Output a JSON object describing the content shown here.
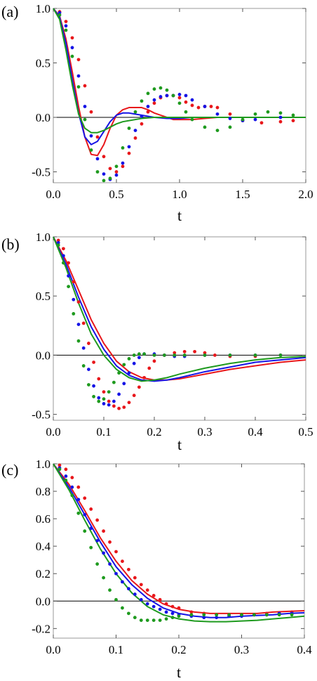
{
  "colors": {
    "red": "#e8171b",
    "blue": "#1614e6",
    "green": "#1e9a1e",
    "axis": "#000000",
    "frame": "#9a9a9a"
  },
  "chart_data": [
    {
      "panel": "(a)",
      "type": "line",
      "xlabel": "t",
      "ylabel": "",
      "xlim": [
        0,
        2.0
      ],
      "ylim": [
        -0.6,
        1.0
      ],
      "xticks": [
        "0.0",
        "0.5",
        "1.0",
        "1.5",
        "2.0"
      ],
      "yticks": [
        "1.0",
        "0.5",
        "0.0",
        "-0.5"
      ],
      "xtick_values": [
        0,
        0.5,
        1.0,
        1.5,
        2.0
      ],
      "ytick_values": [
        1.0,
        0.5,
        0.0,
        -0.5
      ],
      "series": [
        {
          "color": "red",
          "style": "line",
          "x": [
            0,
            0.05,
            0.1,
            0.15,
            0.2,
            0.25,
            0.3,
            0.35,
            0.4,
            0.45,
            0.5,
            0.55,
            0.6,
            0.65,
            0.7,
            0.75,
            0.8,
            0.85,
            0.9,
            0.95,
            1.0,
            1.1,
            1.2,
            1.3,
            1.4,
            1.5,
            1.6,
            1.8,
            2.0
          ],
          "y": [
            1.0,
            0.93,
            0.72,
            0.42,
            0.1,
            -0.18,
            -0.34,
            -0.35,
            -0.25,
            -0.1,
            0.02,
            0.07,
            0.09,
            0.09,
            0.09,
            0.07,
            0.04,
            0.02,
            0.0,
            -0.02,
            -0.02,
            -0.02,
            -0.01,
            0.0,
            0.0,
            0.0,
            0.0,
            0.0,
            0.0
          ]
        },
        {
          "color": "blue",
          "style": "line",
          "x": [
            0,
            0.05,
            0.1,
            0.15,
            0.2,
            0.25,
            0.3,
            0.35,
            0.4,
            0.45,
            0.5,
            0.55,
            0.6,
            0.65,
            0.7,
            0.75,
            0.8,
            0.9,
            1.0,
            1.1,
            1.2,
            1.4,
            1.6,
            1.8,
            2.0
          ],
          "y": [
            1.0,
            0.92,
            0.68,
            0.35,
            0.04,
            -0.18,
            -0.25,
            -0.22,
            -0.13,
            -0.04,
            0.02,
            0.04,
            0.04,
            0.03,
            0.02,
            0.01,
            0.0,
            -0.01,
            -0.01,
            0.0,
            0.0,
            0.0,
            0.0,
            0.0,
            0.0
          ]
        },
        {
          "color": "green",
          "style": "line",
          "x": [
            0,
            0.05,
            0.1,
            0.15,
            0.2,
            0.25,
            0.3,
            0.35,
            0.4,
            0.45,
            0.5,
            0.55,
            0.6,
            0.7,
            0.8,
            0.9,
            1.0,
            1.2,
            1.4,
            1.6,
            1.8,
            2.0
          ],
          "y": [
            1.0,
            0.9,
            0.62,
            0.3,
            0.03,
            -0.1,
            -0.14,
            -0.14,
            -0.12,
            -0.09,
            -0.06,
            -0.04,
            -0.03,
            -0.01,
            0.0,
            0.0,
            0.0,
            0.0,
            0.0,
            0.0,
            0.0,
            0.0
          ]
        },
        {
          "color": "red",
          "style": "dots",
          "x": [
            0.05,
            0.1,
            0.15,
            0.2,
            0.25,
            0.3,
            0.35,
            0.4,
            0.45,
            0.5,
            0.55,
            0.6,
            0.65,
            0.7,
            0.75,
            0.8,
            0.85,
            0.9,
            0.95,
            1.0,
            1.05,
            1.1,
            1.15,
            1.2,
            1.25,
            1.3,
            1.4,
            1.5,
            1.65,
            1.8,
            1.9
          ],
          "y": [
            0.97,
            0.88,
            0.73,
            0.53,
            0.29,
            0.05,
            -0.18,
            -0.36,
            -0.47,
            -0.5,
            -0.45,
            -0.33,
            -0.19,
            -0.06,
            0.05,
            0.13,
            0.18,
            0.2,
            0.2,
            0.18,
            0.14,
            0.11,
            0.09,
            0.1,
            0.1,
            0.09,
            0.03,
            -0.03,
            -0.05,
            -0.04,
            -0.03
          ]
        },
        {
          "color": "blue",
          "style": "dots",
          "x": [
            0.05,
            0.1,
            0.15,
            0.2,
            0.25,
            0.3,
            0.35,
            0.4,
            0.45,
            0.5,
            0.55,
            0.6,
            0.65,
            0.7,
            0.75,
            0.8,
            0.85,
            0.9,
            0.95,
            1.0,
            1.05,
            1.1,
            1.2,
            1.3,
            1.4,
            1.5,
            1.6,
            1.8
          ],
          "y": [
            0.96,
            0.84,
            0.64,
            0.38,
            0.1,
            -0.17,
            -0.38,
            -0.52,
            -0.57,
            -0.53,
            -0.42,
            -0.27,
            -0.12,
            0.01,
            0.1,
            0.16,
            0.19,
            0.2,
            0.2,
            0.21,
            0.2,
            0.16,
            0.1,
            0.03,
            -0.01,
            -0.03,
            -0.02,
            0.0
          ]
        },
        {
          "color": "green",
          "style": "dots",
          "x": [
            0.05,
            0.1,
            0.15,
            0.2,
            0.25,
            0.3,
            0.35,
            0.4,
            0.45,
            0.5,
            0.55,
            0.6,
            0.65,
            0.7,
            0.75,
            0.8,
            0.85,
            0.9,
            0.95,
            1.0,
            1.05,
            1.1,
            1.2,
            1.3,
            1.4,
            1.5,
            1.6,
            1.7,
            1.8,
            1.9
          ],
          "y": [
            0.94,
            0.8,
            0.56,
            0.28,
            -0.02,
            -0.3,
            -0.5,
            -0.58,
            -0.56,
            -0.45,
            -0.28,
            -0.1,
            0.05,
            0.15,
            0.22,
            0.26,
            0.27,
            0.25,
            0.2,
            0.13,
            0.05,
            -0.02,
            -0.09,
            -0.12,
            -0.09,
            -0.02,
            0.03,
            0.05,
            0.04,
            0.02
          ]
        }
      ]
    },
    {
      "panel": "(b)",
      "type": "line",
      "xlabel": "t",
      "ylabel": "",
      "xlim": [
        0,
        0.5
      ],
      "ylim": [
        -0.55,
        1.0
      ],
      "xticks": [
        "0.0",
        "0.1",
        "0.2",
        "0.3",
        "0.4",
        "0.5"
      ],
      "yticks": [
        "1.0",
        "0.5",
        "0.0",
        "-0.5"
      ],
      "xtick_values": [
        0,
        0.1,
        0.2,
        0.3,
        0.4,
        0.5
      ],
      "ytick_values": [
        1.0,
        0.5,
        0.0,
        -0.5
      ],
      "series": [
        {
          "color": "red",
          "style": "line",
          "x": [
            0,
            0.025,
            0.05,
            0.075,
            0.1,
            0.125,
            0.15,
            0.175,
            0.2,
            0.225,
            0.25,
            0.3,
            0.35,
            0.4,
            0.45,
            0.5
          ],
          "y": [
            1.0,
            0.8,
            0.55,
            0.3,
            0.1,
            -0.05,
            -0.14,
            -0.19,
            -0.21,
            -0.21,
            -0.2,
            -0.16,
            -0.12,
            -0.09,
            -0.06,
            -0.04
          ]
        },
        {
          "color": "blue",
          "style": "line",
          "x": [
            0,
            0.025,
            0.05,
            0.075,
            0.1,
            0.125,
            0.15,
            0.175,
            0.2,
            0.225,
            0.25,
            0.3,
            0.35,
            0.4,
            0.45,
            0.5
          ],
          "y": [
            1.0,
            0.77,
            0.49,
            0.24,
            0.05,
            -0.09,
            -0.17,
            -0.21,
            -0.22,
            -0.21,
            -0.19,
            -0.14,
            -0.1,
            -0.06,
            -0.04,
            -0.02
          ]
        },
        {
          "color": "green",
          "style": "line",
          "x": [
            0,
            0.025,
            0.05,
            0.075,
            0.1,
            0.125,
            0.15,
            0.175,
            0.2,
            0.225,
            0.25,
            0.3,
            0.35,
            0.4,
            0.45,
            0.5
          ],
          "y": [
            1.0,
            0.74,
            0.44,
            0.18,
            0.0,
            -0.12,
            -0.19,
            -0.22,
            -0.21,
            -0.19,
            -0.16,
            -0.11,
            -0.07,
            -0.04,
            -0.02,
            -0.01
          ]
        },
        {
          "color": "red",
          "style": "dots",
          "x": [
            0.01,
            0.02,
            0.03,
            0.04,
            0.05,
            0.06,
            0.07,
            0.08,
            0.09,
            0.1,
            0.11,
            0.12,
            0.13,
            0.14,
            0.15,
            0.16,
            0.17,
            0.18,
            0.19,
            0.2,
            0.22,
            0.24,
            0.26,
            0.28,
            0.3,
            0.32,
            0.35,
            0.4,
            0.45
          ],
          "y": [
            0.97,
            0.9,
            0.78,
            0.62,
            0.45,
            0.27,
            0.1,
            -0.06,
            -0.2,
            -0.31,
            -0.39,
            -0.43,
            -0.45,
            -0.44,
            -0.4,
            -0.34,
            -0.27,
            -0.19,
            -0.11,
            -0.05,
            0.0,
            0.02,
            0.03,
            0.03,
            0.02,
            0.0,
            -0.01,
            -0.01,
            0.0
          ]
        },
        {
          "color": "blue",
          "style": "dots",
          "x": [
            0.01,
            0.02,
            0.03,
            0.04,
            0.05,
            0.06,
            0.07,
            0.08,
            0.09,
            0.1,
            0.11,
            0.12,
            0.13,
            0.14,
            0.15,
            0.16,
            0.17,
            0.18,
            0.2,
            0.22,
            0.24,
            0.26,
            0.3,
            0.35,
            0.4,
            0.45
          ],
          "y": [
            0.95,
            0.84,
            0.67,
            0.47,
            0.26,
            0.06,
            -0.12,
            -0.26,
            -0.36,
            -0.41,
            -0.42,
            -0.39,
            -0.33,
            -0.24,
            -0.15,
            -0.07,
            -0.02,
            0.01,
            0.01,
            0.0,
            -0.01,
            -0.01,
            0.0,
            0.0,
            0.0,
            0.0
          ]
        },
        {
          "color": "green",
          "style": "dots",
          "x": [
            0.01,
            0.02,
            0.03,
            0.04,
            0.05,
            0.06,
            0.07,
            0.08,
            0.09,
            0.1,
            0.11,
            0.12,
            0.13,
            0.14,
            0.15,
            0.16,
            0.17,
            0.18,
            0.2,
            0.22,
            0.24,
            0.26,
            0.3,
            0.35,
            0.4,
            0.45
          ],
          "y": [
            0.93,
            0.78,
            0.58,
            0.35,
            0.12,
            -0.09,
            -0.25,
            -0.35,
            -0.39,
            -0.37,
            -0.31,
            -0.23,
            -0.15,
            -0.08,
            -0.03,
            0.0,
            0.01,
            0.01,
            0.0,
            0.0,
            0.0,
            0.0,
            0.0,
            0.0,
            0.0,
            0.0
          ]
        }
      ]
    },
    {
      "panel": "(c)",
      "type": "line",
      "xlabel": "t",
      "ylabel": "",
      "xlim": [
        0,
        0.4
      ],
      "ylim": [
        -0.27,
        1.0
      ],
      "xticks": [
        "0.0",
        "0.1",
        "0.2",
        "0.3",
        "0.4"
      ],
      "yticks": [
        "1.0",
        "0.8",
        "0.6",
        "0.4",
        "0.2",
        "0.0",
        "-0.2"
      ],
      "xtick_values": [
        0,
        0.1,
        0.2,
        0.3,
        0.4
      ],
      "ytick_values": [
        1.0,
        0.8,
        0.6,
        0.4,
        0.2,
        0.0,
        -0.2
      ],
      "series": [
        {
          "color": "red",
          "style": "line",
          "x": [
            0,
            0.025,
            0.05,
            0.075,
            0.1,
            0.125,
            0.15,
            0.175,
            0.2,
            0.225,
            0.25,
            0.275,
            0.3,
            0.325,
            0.35,
            0.375,
            0.4
          ],
          "y": [
            1.0,
            0.85,
            0.66,
            0.46,
            0.29,
            0.15,
            0.05,
            -0.02,
            -0.06,
            -0.08,
            -0.09,
            -0.09,
            -0.09,
            -0.09,
            -0.08,
            -0.075,
            -0.07
          ]
        },
        {
          "color": "blue",
          "style": "line",
          "x": [
            0,
            0.025,
            0.05,
            0.075,
            0.1,
            0.125,
            0.15,
            0.175,
            0.2,
            0.225,
            0.25,
            0.275,
            0.3,
            0.325,
            0.35,
            0.375,
            0.4
          ],
          "y": [
            1.0,
            0.83,
            0.63,
            0.43,
            0.25,
            0.12,
            0.02,
            -0.05,
            -0.09,
            -0.11,
            -0.12,
            -0.12,
            -0.11,
            -0.105,
            -0.1,
            -0.09,
            -0.085
          ]
        },
        {
          "color": "green",
          "style": "line",
          "x": [
            0,
            0.025,
            0.05,
            0.075,
            0.1,
            0.125,
            0.15,
            0.175,
            0.2,
            0.225,
            0.25,
            0.275,
            0.3,
            0.325,
            0.35,
            0.375,
            0.4
          ],
          "y": [
            1.0,
            0.81,
            0.59,
            0.38,
            0.2,
            0.06,
            -0.04,
            -0.1,
            -0.13,
            -0.145,
            -0.15,
            -0.15,
            -0.145,
            -0.14,
            -0.13,
            -0.12,
            -0.11
          ]
        },
        {
          "color": "red",
          "style": "dots",
          "x": [
            0.01,
            0.02,
            0.03,
            0.04,
            0.05,
            0.06,
            0.07,
            0.08,
            0.09,
            0.1,
            0.11,
            0.12,
            0.13,
            0.14,
            0.15,
            0.16,
            0.17,
            0.18,
            0.19,
            0.2,
            0.22,
            0.24,
            0.26,
            0.28,
            0.3,
            0.32,
            0.34,
            0.36,
            0.38
          ],
          "y": [
            0.99,
            0.96,
            0.9,
            0.83,
            0.75,
            0.67,
            0.59,
            0.51,
            0.43,
            0.36,
            0.29,
            0.23,
            0.17,
            0.12,
            0.08,
            0.04,
            0.01,
            -0.02,
            -0.04,
            -0.05,
            -0.08,
            -0.09,
            -0.1,
            -0.1,
            -0.1,
            -0.1,
            -0.09,
            -0.09,
            -0.08
          ]
        },
        {
          "color": "blue",
          "style": "dots",
          "x": [
            0.01,
            0.02,
            0.03,
            0.04,
            0.05,
            0.06,
            0.07,
            0.08,
            0.09,
            0.1,
            0.11,
            0.12,
            0.13,
            0.14,
            0.15,
            0.16,
            0.17,
            0.18,
            0.19,
            0.2,
            0.22,
            0.24,
            0.26,
            0.28,
            0.3,
            0.32,
            0.34,
            0.36,
            0.38
          ],
          "y": [
            0.97,
            0.91,
            0.83,
            0.74,
            0.63,
            0.53,
            0.44,
            0.35,
            0.27,
            0.2,
            0.14,
            0.09,
            0.05,
            0.01,
            -0.02,
            -0.04,
            -0.06,
            -0.08,
            -0.09,
            -0.1,
            -0.11,
            -0.12,
            -0.12,
            -0.11,
            -0.11,
            -0.1,
            -0.1,
            -0.09,
            -0.09
          ]
        },
        {
          "color": "green",
          "style": "dots",
          "x": [
            0.01,
            0.02,
            0.03,
            0.04,
            0.05,
            0.06,
            0.07,
            0.08,
            0.09,
            0.1,
            0.11,
            0.12,
            0.13,
            0.14,
            0.15,
            0.16,
            0.17,
            0.18,
            0.19,
            0.2,
            0.22,
            0.24,
            0.26,
            0.28,
            0.3,
            0.32,
            0.34,
            0.36,
            0.38
          ],
          "y": [
            0.96,
            0.88,
            0.77,
            0.64,
            0.51,
            0.39,
            0.27,
            0.17,
            0.08,
            0.01,
            -0.05,
            -0.09,
            -0.12,
            -0.14,
            -0.14,
            -0.14,
            -0.14,
            -0.13,
            -0.12,
            -0.11,
            -0.1,
            -0.1,
            -0.1,
            -0.1,
            -0.1,
            -0.1,
            -0.1,
            -0.1,
            -0.1
          ]
        }
      ]
    }
  ]
}
